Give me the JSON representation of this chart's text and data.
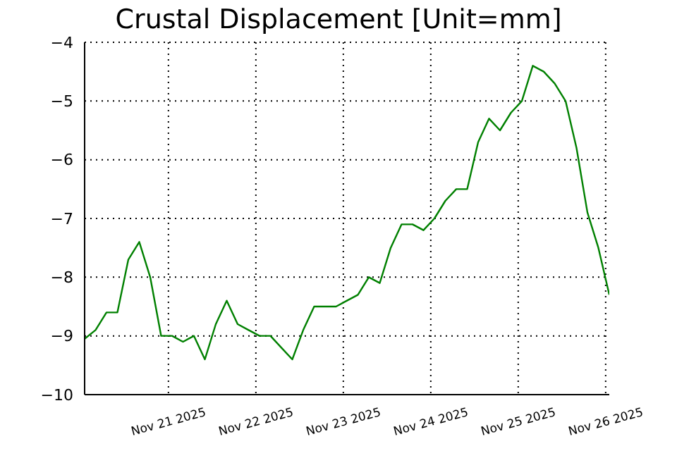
{
  "chart_data": {
    "type": "line",
    "title": "Crustal Displacement [Unit=mm]",
    "x": [
      "2025-11-20T01:00",
      "2025-11-20T04:00",
      "2025-11-20T07:00",
      "2025-11-20T10:00",
      "2025-11-20T13:00",
      "2025-11-20T16:00",
      "2025-11-20T19:00",
      "2025-11-20T22:00",
      "2025-11-21T01:00",
      "2025-11-21T04:00",
      "2025-11-21T07:00",
      "2025-11-21T10:00",
      "2025-11-21T13:00",
      "2025-11-21T16:00",
      "2025-11-21T19:00",
      "2025-11-21T22:00",
      "2025-11-22T01:00",
      "2025-11-22T04:00",
      "2025-11-22T07:00",
      "2025-11-22T10:00",
      "2025-11-22T13:00",
      "2025-11-22T16:00",
      "2025-11-22T19:00",
      "2025-11-22T22:00",
      "2025-11-23T01:00",
      "2025-11-23T04:00",
      "2025-11-23T07:00",
      "2025-11-23T10:00",
      "2025-11-23T13:00",
      "2025-11-23T16:00",
      "2025-11-23T19:00",
      "2025-11-23T22:00",
      "2025-11-24T01:00",
      "2025-11-24T04:00",
      "2025-11-24T07:00",
      "2025-11-24T10:00",
      "2025-11-24T13:00",
      "2025-11-24T16:00",
      "2025-11-24T19:00",
      "2025-11-24T22:00",
      "2025-11-25T01:00",
      "2025-11-25T04:00",
      "2025-11-25T07:00",
      "2025-11-25T10:00",
      "2025-11-25T13:00",
      "2025-11-25T16:00",
      "2025-11-25T19:00",
      "2025-11-25T22:00",
      "2025-11-26T01:00"
    ],
    "series": [
      {
        "color": "#008000",
        "values": [
          -9.05,
          -8.9,
          -8.6,
          -8.6,
          -7.7,
          -7.4,
          -8.0,
          -9.0,
          -9.0,
          -9.1,
          -9.0,
          -9.4,
          -8.8,
          -8.4,
          -8.8,
          -8.9,
          -9.0,
          -9.0,
          -9.2,
          -9.4,
          -8.9,
          -8.5,
          -8.5,
          -8.5,
          -8.4,
          -8.3,
          -8.0,
          -8.1,
          -7.5,
          -7.1,
          -7.1,
          -7.2,
          -7.0,
          -6.7,
          -6.5,
          -6.5,
          -5.7,
          -5.3,
          -5.5,
          -5.2,
          -5.0,
          -4.4,
          -4.5,
          -4.7,
          -5.0,
          -5.8,
          -6.9,
          -7.5,
          -8.3
        ]
      }
    ],
    "xlim": [
      "2025-11-20T01:00",
      "2025-11-26T01:00"
    ],
    "xticks": [
      {
        "value": "2025-11-21",
        "label": "Nov 21 2025"
      },
      {
        "value": "2025-11-22",
        "label": "Nov 22 2025"
      },
      {
        "value": "2025-11-23",
        "label": "Nov 23 2025"
      },
      {
        "value": "2025-11-24",
        "label": "Nov 24 2025"
      },
      {
        "value": "2025-11-25",
        "label": "Nov 25 2025"
      },
      {
        "value": "2025-11-26",
        "label": "Nov 26 2025"
      }
    ],
    "ylim": [
      -10,
      -4
    ],
    "yticks": [
      {
        "value": -10,
        "label": "−10"
      },
      {
        "value": -9,
        "label": "−9"
      },
      {
        "value": -8,
        "label": "−8"
      },
      {
        "value": -7,
        "label": "−7"
      },
      {
        "value": -6,
        "label": "−6"
      },
      {
        "value": -5,
        "label": "−5"
      },
      {
        "value": -4,
        "label": "−4"
      }
    ],
    "grid": true,
    "line_style": "solid",
    "marker": "none",
    "legend": false
  }
}
